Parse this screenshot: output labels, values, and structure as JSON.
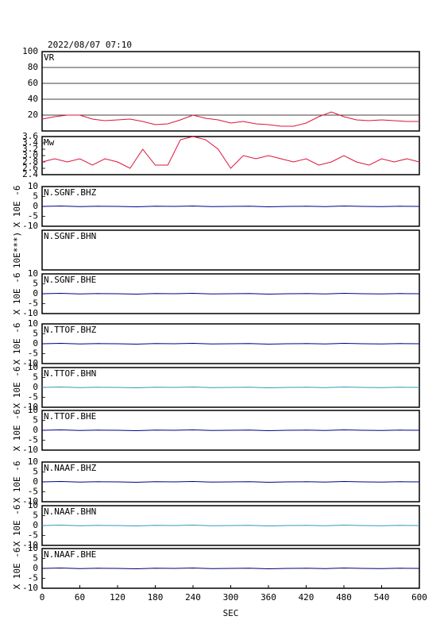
{
  "chart_data": [
    {
      "type": "line",
      "title": "2022/08/07 07:10",
      "xlim": [
        0,
        600
      ],
      "ylim": [
        0,
        100
      ],
      "yticks": [
        20,
        40,
        60,
        80,
        100
      ],
      "grid": true,
      "x": [
        0,
        20,
        40,
        60,
        80,
        100,
        120,
        140,
        160,
        180,
        200,
        220,
        240,
        260,
        280,
        300,
        320,
        340,
        360,
        380,
        400,
        420,
        440,
        460,
        480,
        500,
        520,
        540,
        560,
        580,
        600
      ],
      "series": [
        {
          "name": "VR",
          "color": "#dc143c",
          "values": [
            15,
            18,
            20,
            20,
            15,
            13,
            14,
            15,
            12,
            8,
            9,
            14,
            20,
            16,
            14,
            10,
            12,
            9,
            8,
            6,
            6,
            10,
            18,
            24,
            18,
            14,
            13,
            14,
            13,
            12,
            12
          ]
        }
      ]
    },
    {
      "type": "line",
      "xlim": [
        0,
        600
      ],
      "ylim": [
        2.4,
        3.6
      ],
      "yticks": [
        2.4,
        2.6,
        2.8,
        {
          "value": 3,
          "label": "3.0"
        },
        3.2,
        3.4,
        3.6
      ],
      "x": [
        0,
        20,
        40,
        60,
        80,
        100,
        120,
        140,
        160,
        180,
        200,
        220,
        240,
        260,
        280,
        300,
        320,
        340,
        360,
        380,
        400,
        420,
        440,
        460,
        480,
        500,
        520,
        540,
        560,
        580,
        600
      ],
      "series": [
        {
          "name": "Mw",
          "color": "#dc143c",
          "values": [
            2.8,
            2.9,
            2.8,
            2.9,
            2.7,
            2.9,
            2.8,
            2.6,
            3.2,
            2.7,
            2.7,
            3.5,
            3.6,
            3.5,
            3.2,
            2.6,
            3.0,
            2.9,
            3.0,
            2.9,
            2.8,
            2.9,
            2.7,
            2.8,
            3.0,
            2.8,
            2.7,
            2.9,
            2.8,
            2.9,
            2.8
          ]
        }
      ]
    },
    {
      "type": "line",
      "xlim": [
        0,
        600
      ],
      "ylim": [
        -10,
        10
      ],
      "yticks": [
        -10,
        -5,
        0,
        5,
        10
      ],
      "ylabel": "X 10E -6",
      "x": [
        0,
        30,
        60,
        90,
        120,
        150,
        180,
        210,
        240,
        270,
        300,
        330,
        360,
        390,
        420,
        450,
        480,
        510,
        540,
        570,
        600
      ],
      "series": [
        {
          "name": "N.SGNF.BHZ",
          "color": "#00008b",
          "values": [
            0,
            0.2,
            -0.1,
            0.1,
            0,
            -0.2,
            0.1,
            0,
            0.2,
            -0.1,
            0,
            0.1,
            -0.2,
            0,
            0.1,
            -0.1,
            0.2,
            0,
            -0.1,
            0.1,
            0
          ]
        }
      ]
    },
    {
      "type": "line",
      "xlim": [
        0,
        600
      ],
      "ylabel": "10E***)",
      "series": [
        {
          "name": "N.SGNF.BHN"
        }
      ]
    },
    {
      "type": "line",
      "xlim": [
        0,
        600
      ],
      "ylim": [
        -10,
        10
      ],
      "yticks": [
        -10,
        -5,
        0,
        5,
        10
      ],
      "ylabel": "X 10E -6",
      "x": [
        0,
        30,
        60,
        90,
        120,
        150,
        180,
        210,
        240,
        270,
        300,
        330,
        360,
        390,
        420,
        450,
        480,
        510,
        540,
        570,
        600
      ],
      "series": [
        {
          "name": "N.SGNF.BHE",
          "color": "#00008b",
          "values": [
            0,
            0.2,
            -0.1,
            0.1,
            0,
            -0.2,
            0.1,
            0,
            0.2,
            -0.1,
            0,
            0.1,
            -0.2,
            0,
            0.1,
            -0.1,
            0.2,
            0,
            -0.1,
            0.1,
            0
          ]
        }
      ]
    },
    {
      "type": "line",
      "xlim": [
        0,
        600
      ],
      "ylim": [
        -10,
        10
      ],
      "yticks": [
        -10,
        -5,
        0,
        5,
        10
      ],
      "ylabel": "X 10E -6",
      "x": [
        0,
        30,
        60,
        90,
        120,
        150,
        180,
        210,
        240,
        270,
        300,
        330,
        360,
        390,
        420,
        450,
        480,
        510,
        540,
        570,
        600
      ],
      "series": [
        {
          "name": "N.TTOF.BHZ",
          "color": "#00008b",
          "values": [
            0,
            0.2,
            -0.1,
            0.1,
            0,
            -0.2,
            0.1,
            0,
            0.2,
            -0.1,
            0,
            0.1,
            -0.2,
            0,
            0.1,
            -0.1,
            0.2,
            0,
            -0.1,
            0.1,
            0
          ]
        }
      ]
    },
    {
      "type": "line",
      "xlim": [
        0,
        600
      ],
      "ylim": [
        -10,
        10
      ],
      "yticks": [
        -10,
        -5,
        0,
        5,
        10
      ],
      "ylabel": "X 10E -6",
      "x": [
        0,
        30,
        60,
        90,
        120,
        150,
        180,
        210,
        240,
        270,
        300,
        330,
        360,
        390,
        420,
        450,
        480,
        510,
        540,
        570,
        600
      ],
      "series": [
        {
          "name": "N.TTOF.BHN",
          "color": "#3399bb",
          "values": [
            0,
            0.2,
            -0.1,
            0.1,
            0,
            -0.2,
            0.1,
            0,
            0.2,
            -0.1,
            0,
            0.1,
            -0.2,
            0,
            0.1,
            -0.1,
            0.2,
            0,
            -0.1,
            0.1,
            0
          ]
        }
      ]
    },
    {
      "type": "line",
      "xlim": [
        0,
        600
      ],
      "ylim": [
        -10,
        10
      ],
      "yticks": [
        -10,
        -5,
        0,
        5,
        10
      ],
      "ylabel": "X 10E -6",
      "x": [
        0,
        30,
        60,
        90,
        120,
        150,
        180,
        210,
        240,
        270,
        300,
        330,
        360,
        390,
        420,
        450,
        480,
        510,
        540,
        570,
        600
      ],
      "series": [
        {
          "name": "N.TTOF.BHE",
          "color": "#00008b",
          "values": [
            0,
            0.2,
            -0.1,
            0.1,
            0,
            -0.2,
            0.1,
            0,
            0.2,
            -0.1,
            0,
            0.1,
            -0.2,
            0,
            0.1,
            -0.1,
            0.2,
            0,
            -0.1,
            0.1,
            0
          ]
        }
      ]
    },
    {
      "type": "line",
      "xlim": [
        0,
        600
      ],
      "ylim": [
        -10,
        10
      ],
      "yticks": [
        -10,
        -5,
        0,
        5,
        10
      ],
      "ylabel": "X 10E -6",
      "x": [
        0,
        30,
        60,
        90,
        120,
        150,
        180,
        210,
        240,
        270,
        300,
        330,
        360,
        390,
        420,
        450,
        480,
        510,
        540,
        570,
        600
      ],
      "series": [
        {
          "name": "N.NAAF.BHZ",
          "color": "#00008b",
          "values": [
            0,
            0.2,
            -0.1,
            0.1,
            0,
            -0.2,
            0.1,
            0,
            0.2,
            -0.1,
            0,
            0.1,
            -0.2,
            0,
            0.1,
            -0.1,
            0.2,
            0,
            -0.1,
            0.1,
            0
          ]
        }
      ]
    },
    {
      "type": "line",
      "xlim": [
        0,
        600
      ],
      "ylim": [
        -10,
        10
      ],
      "yticks": [
        -10,
        -5,
        0,
        5,
        10
      ],
      "ylabel": "X 10E -6",
      "x": [
        0,
        30,
        60,
        90,
        120,
        150,
        180,
        210,
        240,
        270,
        300,
        330,
        360,
        390,
        420,
        450,
        480,
        510,
        540,
        570,
        600
      ],
      "series": [
        {
          "name": "N.NAAF.BHN",
          "color": "#3399bb",
          "values": [
            0,
            0.2,
            -0.1,
            0.1,
            0,
            -0.2,
            0.1,
            0,
            0.2,
            -0.1,
            0,
            0.1,
            -0.2,
            0,
            0.1,
            -0.1,
            0.2,
            0,
            -0.1,
            0.1,
            0
          ]
        }
      ]
    },
    {
      "type": "line",
      "xlim": [
        0,
        600
      ],
      "ylim": [
        -10,
        10
      ],
      "yticks": [
        -10,
        -5,
        0,
        5,
        10
      ],
      "ylabel": "X 10E -6",
      "xticks": [
        0,
        60,
        120,
        180,
        240,
        300,
        360,
        420,
        480,
        540,
        600
      ],
      "xlabel": "SEC",
      "x": [
        0,
        30,
        60,
        90,
        120,
        150,
        180,
        210,
        240,
        270,
        300,
        330,
        360,
        390,
        420,
        450,
        480,
        510,
        540,
        570,
        600
      ],
      "series": [
        {
          "name": "N.NAAF.BHE",
          "color": "#000066",
          "values": [
            0,
            0.2,
            -0.1,
            0.1,
            0,
            -0.2,
            0.1,
            0,
            0.2,
            -0.1,
            0,
            0.1,
            -0.2,
            0,
            0.1,
            -0.1,
            0.2,
            0,
            -0.1,
            0.1,
            0
          ]
        }
      ]
    }
  ]
}
